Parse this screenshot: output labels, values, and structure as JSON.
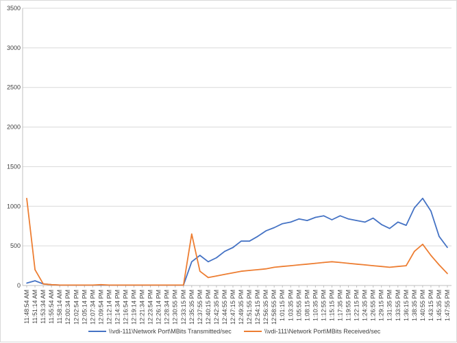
{
  "chart_data": {
    "type": "line",
    "ylim": [
      0,
      3500
    ],
    "yticks": [
      0,
      500,
      1000,
      1500,
      2000,
      2500,
      3000,
      3500
    ],
    "xticks": [
      "11:48:54 AM",
      "11:51:14 AM",
      "11:53:34 AM",
      "11:55:54 AM",
      "11:58:14 AM",
      "12:00:34 PM",
      "12:02:54 PM",
      "12:05:14 PM",
      "12:07:34 PM",
      "12:09:54 PM",
      "12:12:14 PM",
      "12:14:34 PM",
      "12:16:54 PM",
      "12:19:14 PM",
      "12:21:34 PM",
      "12:23:54 PM",
      "12:26:14 PM",
      "12:28:34 PM",
      "12:30:55 PM",
      "12:33:15 PM",
      "12:35:35 PM",
      "12:37:55 PM",
      "12:40:15 PM",
      "12:42:35 PM",
      "12:44:55 PM",
      "12:47:15 PM",
      "12:49:35 PM",
      "12:51:55 PM",
      "12:54:15 PM",
      "12:56:35 PM",
      "12:58:55 PM",
      "1:01:15 PM",
      "1:03:35 PM",
      "1:05:55 PM",
      "1:08:15 PM",
      "1:10:35 PM",
      "1:12:55 PM",
      "1:15:15 PM",
      "1:17:35 PM",
      "1:19:55 PM",
      "1:22:15 PM",
      "1:24:35 PM",
      "1:26:55 PM",
      "1:29:15 PM",
      "1:31:35 PM",
      "1:33:55 PM",
      "1:36:15 PM",
      "1:38:35 PM",
      "1:40:55 PM",
      "1:43:15 PM",
      "1:45:35 PM",
      "1:47:55 PM"
    ],
    "gridlines": true,
    "legend_position": "bottom",
    "series": [
      {
        "name": "\\\\vdi-111\\Network Port\\MBits Transmitted/sec",
        "color": "#4472c4",
        "values": [
          30,
          60,
          20,
          10,
          5,
          5,
          5,
          5,
          5,
          5,
          5,
          5,
          5,
          5,
          5,
          5,
          5,
          5,
          5,
          5,
          300,
          380,
          300,
          350,
          430,
          480,
          560,
          560,
          620,
          690,
          730,
          780,
          800,
          840,
          820,
          860,
          880,
          830,
          880,
          840,
          820,
          800,
          850,
          770,
          720,
          800,
          760,
          980,
          1100,
          940,
          620,
          480
        ]
      },
      {
        "name": "\\\\vdi-111\\Network Port\\MBits Received/sec",
        "color": "#ed7d31",
        "values": [
          1100,
          200,
          20,
          10,
          5,
          5,
          5,
          5,
          5,
          10,
          5,
          5,
          5,
          5,
          5,
          5,
          5,
          5,
          5,
          5,
          650,
          180,
          100,
          120,
          140,
          160,
          180,
          190,
          200,
          210,
          230,
          240,
          250,
          260,
          270,
          280,
          290,
          300,
          290,
          280,
          270,
          260,
          250,
          240,
          230,
          240,
          250,
          430,
          520,
          380,
          260,
          150
        ]
      }
    ]
  }
}
